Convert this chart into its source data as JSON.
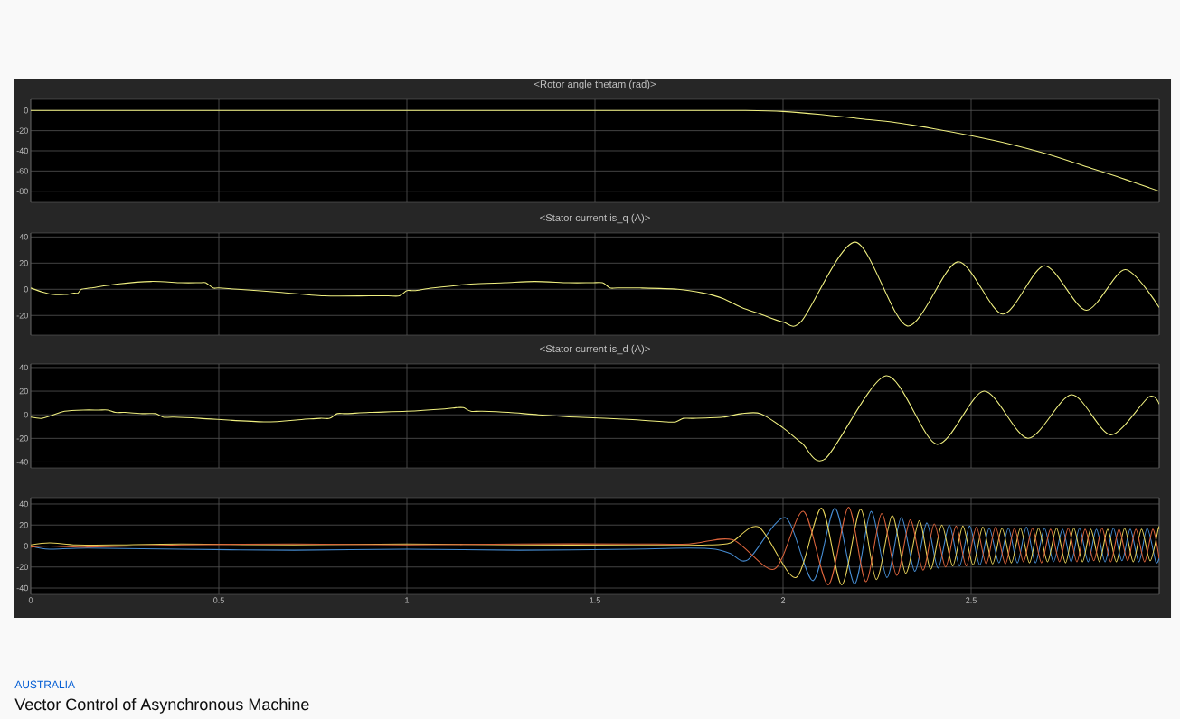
{
  "chart_data": [
    {
      "type": "line",
      "title": "<Rotor angle thetam (rad)>",
      "x": [
        0,
        0.5,
        1,
        1.5,
        1.8,
        1.9,
        2.0,
        2.1,
        2.2,
        2.3,
        2.4,
        2.5,
        2.6,
        2.7,
        2.8,
        2.9,
        3.0
      ],
      "series": [
        {
          "color": "#f0f080",
          "values": [
            0,
            0,
            0,
            0,
            0,
            0,
            -1,
            -4,
            -8,
            -12,
            -18,
            -25,
            -33,
            -43,
            -55,
            -67,
            -80
          ]
        }
      ],
      "xlim": [
        0,
        3
      ],
      "ylim": [
        -91,
        11
      ],
      "xticks": [
        0,
        0.5,
        1,
        1.5,
        2,
        2.5,
        3
      ],
      "yticks": [
        -80,
        -60,
        -40,
        -20,
        0
      ],
      "grid": true,
      "tick_labels": "y"
    },
    {
      "type": "line",
      "title": "<Stator current is_q (A)>",
      "x": [
        0,
        0.03,
        0.06,
        0.09,
        0.115,
        0.125,
        0.135,
        0.16,
        0.23,
        0.32,
        0.4,
        0.45,
        0.465,
        0.485,
        0.5,
        0.55,
        0.65,
        0.78,
        0.9,
        0.95,
        0.98,
        1.0,
        1.02,
        1.07,
        1.17,
        1.26,
        1.34,
        1.43,
        1.49,
        1.52,
        1.54,
        1.56,
        1.62,
        1.72,
        1.79,
        1.84,
        1.89,
        1.94,
        2.0,
        2.05,
        2.192,
        2.33,
        2.464,
        2.584,
        2.695,
        2.806,
        2.909,
        3.0
      ],
      "series": [
        {
          "color": "#f0f080",
          "values": [
            1,
            -2,
            -4,
            -4,
            -3,
            -3,
            0,
            1,
            4,
            6,
            5,
            5,
            5,
            1,
            1,
            0,
            -2,
            -5,
            -5,
            -5,
            -5,
            -1,
            -1,
            1,
            4,
            5,
            6,
            5,
            5,
            5,
            1,
            1,
            1,
            0,
            -3,
            -7,
            -14,
            -19,
            -25,
            -24,
            36,
            -28,
            21,
            -19,
            18,
            -16,
            15,
            -14
          ]
        }
      ],
      "xlim": [
        0,
        3
      ],
      "ylim": [
        -35,
        43
      ],
      "xticks": [
        0,
        0.5,
        1,
        1.5,
        2,
        2.5,
        3
      ],
      "yticks": [
        -20,
        0,
        20,
        40
      ],
      "grid": true,
      "tick_labels": "y"
    },
    {
      "type": "line",
      "title": "<Stator current is_d (A)>",
      "x": [
        0,
        0.03,
        0.06,
        0.09,
        0.14,
        0.18,
        0.205,
        0.225,
        0.25,
        0.3,
        0.332,
        0.352,
        0.38,
        0.45,
        0.62,
        0.72,
        0.77,
        0.795,
        0.815,
        0.84,
        0.9,
        1.0,
        1.1,
        1.13,
        1.15,
        1.17,
        1.2,
        1.27,
        1.35,
        1.45,
        1.6,
        1.69,
        1.715,
        1.735,
        1.76,
        1.84,
        1.89,
        1.94,
        2.0,
        2.05,
        2.113,
        2.274,
        2.409,
        2.534,
        2.651,
        2.767,
        2.871,
        2.972,
        3.0
      ],
      "series": [
        {
          "color": "#f0f080",
          "values": [
            -2,
            -3,
            0,
            3,
            4,
            4,
            4,
            2,
            2,
            1,
            1,
            -2,
            -2,
            -3,
            -6,
            -4,
            -3,
            -3,
            1,
            1,
            2,
            3,
            5,
            6,
            6,
            3,
            3,
            2,
            0,
            -2,
            -4,
            -6,
            -6,
            -3,
            -3,
            -2,
            1,
            1,
            -11,
            -24,
            -37,
            33,
            -25,
            20,
            -20,
            17,
            -17,
            15,
            9
          ]
        }
      ],
      "xlim": [
        0,
        3
      ],
      "ylim": [
        -45,
        43
      ],
      "xticks": [
        0,
        0.5,
        1,
        1.5,
        2,
        2.5,
        3
      ],
      "yticks": [
        -40,
        -20,
        0,
        20,
        40
      ],
      "grid": true,
      "tick_labels": "y"
    },
    {
      "type": "line",
      "series": [
        {
          "color": "#468cd2",
          "x": [
            0,
            0.05,
            0.15,
            0.4,
            0.7,
            1.0,
            1.3,
            1.6,
            1.75,
            1.82,
            1.86,
            1.907,
            2.006,
            2.08,
            2.138,
            2.19,
            2.234,
            2.276,
            2.314,
            2.35,
            2.382,
            2.412,
            2.442,
            2.469,
            2.496,
            2.523,
            2.548,
            2.574,
            2.599,
            2.623,
            2.647,
            2.671,
            2.695,
            2.719,
            2.743,
            2.766,
            2.788,
            2.811,
            2.833,
            2.856,
            2.878,
            2.901,
            2.923,
            2.946,
            2.968,
            2.991,
            3.0
          ],
          "values": [
            0,
            -3,
            -2,
            -3,
            -4,
            -3,
            -4,
            -3,
            -2,
            -3,
            -7,
            -13,
            27,
            -33,
            36,
            -36,
            33,
            -30,
            27,
            -24,
            22,
            -21,
            20,
            -19,
            19,
            -18,
            17,
            -16,
            17,
            -16,
            18,
            -16,
            17,
            -15,
            16,
            -15,
            17,
            -15,
            16,
            -15,
            17,
            -14,
            16,
            -15,
            17,
            -15,
            -11
          ]
        },
        {
          "color": "#e6d25a",
          "x": [
            0,
            0.05,
            0.12,
            0.22,
            0.4,
            0.7,
            1.0,
            1.3,
            1.6,
            1.75,
            1.8,
            1.86,
            1.936,
            2.034,
            2.102,
            2.156,
            2.206,
            2.248,
            2.29,
            2.326,
            2.362,
            2.392,
            2.422,
            2.451,
            2.478,
            2.505,
            2.531,
            2.557,
            2.582,
            2.607,
            2.631,
            2.655,
            2.679,
            2.703,
            2.727,
            2.751,
            2.773,
            2.796,
            2.818,
            2.841,
            2.863,
            2.886,
            2.908,
            2.931,
            2.953,
            2.976,
            2.998,
            3.0
          ],
          "values": [
            1,
            3,
            1,
            1,
            2,
            1,
            2,
            1,
            1,
            1,
            1,
            3,
            18,
            -30,
            36,
            -37,
            35,
            -32,
            29,
            -26,
            24,
            -22,
            20,
            -19,
            19,
            -18,
            18,
            -17,
            17,
            -16,
            17,
            -16,
            17,
            -15,
            17,
            -16,
            17,
            -15,
            16,
            -15,
            16,
            -15,
            17,
            -15,
            16,
            -14,
            17,
            16
          ]
        },
        {
          "color": "#dc643c",
          "x": [
            0,
            0.05,
            0.15,
            0.4,
            0.7,
            1.0,
            1.3,
            1.6,
            1.75,
            1.866,
            1.977,
            2.054,
            2.12,
            2.174,
            2.22,
            2.262,
            2.302,
            2.338,
            2.372,
            2.402,
            2.432,
            2.46,
            2.487,
            2.514,
            2.54,
            2.565,
            2.591,
            2.615,
            2.639,
            2.663,
            2.687,
            2.711,
            2.735,
            2.758,
            2.781,
            2.803,
            2.826,
            2.848,
            2.871,
            2.893,
            2.916,
            2.938,
            2.961,
            2.983,
            3.0
          ],
          "values": [
            -1,
            0,
            -1,
            1,
            2,
            1,
            2,
            2,
            2,
            6,
            -22,
            33,
            -37,
            37,
            -34,
            31,
            -28,
            25,
            -23,
            21,
            -20,
            19,
            -19,
            18,
            -17,
            18,
            -17,
            17,
            -15,
            17,
            -16,
            16,
            -15,
            17,
            -15,
            16,
            -14,
            17,
            -15,
            16,
            -14,
            16,
            -15,
            16,
            -12
          ]
        }
      ],
      "xlim": [
        0,
        3
      ],
      "ylim": [
        -46,
        46
      ],
      "xticks": [
        0,
        0.5,
        1,
        1.5,
        2,
        2.5,
        {
          "value": 3,
          "label": null
        }
      ],
      "yticks": [
        -40,
        -20,
        0,
        20,
        40
      ],
      "grid": true,
      "annotations": [
        "AUSTRALIA",
        "Vector Control of Asynchronous Machine"
      ]
    }
  ]
}
